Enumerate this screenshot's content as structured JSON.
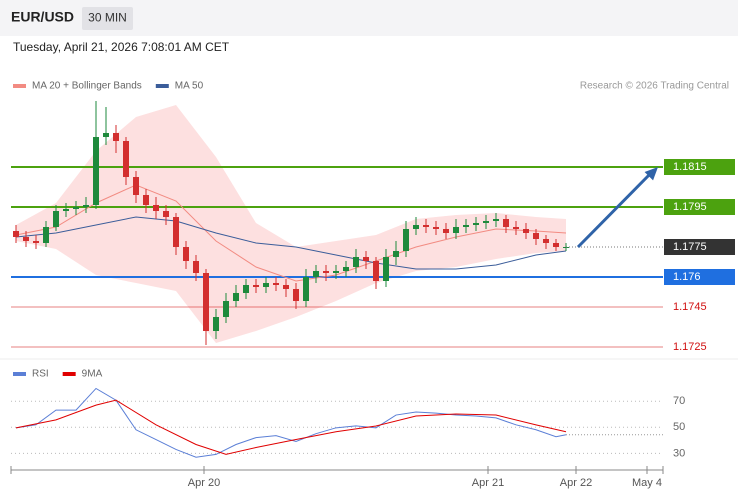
{
  "header": {
    "pair": "EUR/USD",
    "timeframe": "30 MIN",
    "timestamp": "Tuesday, April 21, 2026 7:08:01 AM CET",
    "credit": "Research © 2026 Trading Central"
  },
  "chart_data": [
    {
      "type": "candlestick",
      "xlim": [
        -0.5,
        64.7
      ],
      "ylim": [
        1.172,
        1.185
      ],
      "up_color": "#1e8a3c",
      "down_color": "#d32f2f",
      "candles": {
        "x": [
          0,
          1,
          2,
          3,
          4,
          5,
          6,
          7,
          8,
          9,
          10,
          11,
          12,
          13,
          14,
          15,
          16,
          17,
          18,
          19,
          20,
          21,
          22,
          23,
          24,
          25,
          26,
          27,
          28,
          29,
          30,
          31,
          32,
          33,
          34,
          35,
          36,
          37,
          38,
          39,
          40,
          41,
          42,
          43,
          44,
          45,
          46,
          47,
          48,
          49,
          50,
          51,
          52,
          53,
          54,
          55
        ],
        "open": [
          1.1783,
          1.178,
          1.1778,
          1.1777,
          1.1785,
          1.1793,
          1.1794,
          1.1795,
          1.1796,
          1.183,
          1.1832,
          1.1828,
          1.181,
          1.1801,
          1.1796,
          1.1793,
          1.179,
          1.1775,
          1.1768,
          1.1762,
          1.1733,
          1.174,
          1.1748,
          1.1752,
          1.1756,
          1.1755,
          1.1757,
          1.1756,
          1.1754,
          1.1748,
          1.176,
          1.1763,
          1.1762,
          1.1763,
          1.1765,
          1.177,
          1.1768,
          1.1758,
          1.177,
          1.1773,
          1.1784,
          1.1786,
          1.1785,
          1.1784,
          1.1782,
          1.1785,
          1.1786,
          1.1787,
          1.1788,
          1.1789,
          1.1785,
          1.1784,
          1.1782,
          1.1779,
          1.1777,
          1.1775
        ],
        "high": [
          1.1786,
          1.1783,
          1.1781,
          1.1788,
          1.1796,
          1.1797,
          1.1798,
          1.18,
          1.1848,
          1.1845,
          1.1836,
          1.183,
          1.1813,
          1.1804,
          1.18,
          1.1796,
          1.1792,
          1.1778,
          1.1771,
          1.1764,
          1.1744,
          1.1752,
          1.1756,
          1.1759,
          1.1759,
          1.176,
          1.176,
          1.1759,
          1.1757,
          1.1764,
          1.1766,
          1.1766,
          1.1766,
          1.1768,
          1.1774,
          1.1773,
          1.177,
          1.1774,
          1.1778,
          1.1788,
          1.179,
          1.1789,
          1.1788,
          1.1787,
          1.1789,
          1.1789,
          1.179,
          1.1791,
          1.1792,
          1.1791,
          1.1788,
          1.1787,
          1.1784,
          1.1781,
          1.1779,
          1.1777
        ],
        "low": [
          1.1777,
          1.1775,
          1.1774,
          1.1775,
          1.1783,
          1.179,
          1.1791,
          1.1792,
          1.1794,
          1.1826,
          1.1822,
          1.1806,
          1.1797,
          1.1792,
          1.1789,
          1.1786,
          1.1771,
          1.1764,
          1.1758,
          1.1726,
          1.1729,
          1.1737,
          1.1745,
          1.1749,
          1.1752,
          1.1752,
          1.1753,
          1.175,
          1.1744,
          1.1745,
          1.1757,
          1.1758,
          1.1759,
          1.176,
          1.1762,
          1.1764,
          1.1754,
          1.1755,
          1.1766,
          1.177,
          1.1781,
          1.1782,
          1.1781,
          1.1779,
          1.1779,
          1.1782,
          1.1783,
          1.1784,
          1.1785,
          1.1782,
          1.1781,
          1.1779,
          1.1776,
          1.1774,
          1.1773,
          1.1773
        ],
        "close": [
          1.178,
          1.1778,
          1.1777,
          1.1785,
          1.1793,
          1.1794,
          1.1795,
          1.1796,
          1.183,
          1.1832,
          1.1828,
          1.181,
          1.1801,
          1.1796,
          1.1793,
          1.179,
          1.1775,
          1.1768,
          1.1762,
          1.1733,
          1.174,
          1.1748,
          1.1752,
          1.1756,
          1.1755,
          1.1757,
          1.1756,
          1.1754,
          1.1748,
          1.176,
          1.1763,
          1.1762,
          1.1763,
          1.1765,
          1.177,
          1.1768,
          1.1758,
          1.177,
          1.1773,
          1.1784,
          1.1786,
          1.1785,
          1.1784,
          1.1782,
          1.1785,
          1.1786,
          1.1787,
          1.1788,
          1.1789,
          1.1785,
          1.1784,
          1.1782,
          1.1779,
          1.1777,
          1.1775,
          1.1775
        ]
      },
      "series": [
        {
          "name": "MA 20 + Bollinger Bands",
          "color": "#f28b82",
          "band_color": "#fde0e0",
          "x": [
            0,
            4,
            8,
            12,
            16,
            20,
            24,
            28,
            32,
            36,
            40,
            44,
            48,
            52,
            55
          ],
          "values": [
            1.1781,
            1.1785,
            1.1797,
            1.1806,
            1.1798,
            1.1778,
            1.1765,
            1.1758,
            1.1761,
            1.1768,
            1.1775,
            1.178,
            1.1784,
            1.1783,
            1.1782
          ],
          "upper": [
            1.1786,
            1.1797,
            1.1823,
            1.184,
            1.1846,
            1.182,
            1.1787,
            1.1775,
            1.1778,
            1.1781,
            1.1789,
            1.1791,
            1.1792,
            1.179,
            1.1789
          ],
          "lower": [
            1.1778,
            1.1774,
            1.1761,
            1.1757,
            1.1753,
            1.1727,
            1.1733,
            1.174,
            1.1748,
            1.1757,
            1.1763,
            1.1765,
            1.1769,
            1.1772,
            1.1773
          ]
        },
        {
          "name": "MA 50",
          "color": "#3b5d9a",
          "x": [
            0,
            4,
            8,
            12,
            16,
            20,
            24,
            28,
            32,
            36,
            40,
            44,
            48,
            52,
            55
          ],
          "values": [
            1.178,
            1.1782,
            1.1786,
            1.179,
            1.1788,
            1.1782,
            1.1777,
            1.1775,
            1.1771,
            1.1767,
            1.1764,
            1.1764,
            1.1766,
            1.1771,
            1.1773
          ]
        }
      ],
      "levels": [
        {
          "value": 1.1815,
          "color": "#4ca20f",
          "box": true
        },
        {
          "value": 1.1795,
          "color": "#4ca20f",
          "box": true
        },
        {
          "value": 1.176,
          "color": "#1f6fe0",
          "box": true
        },
        {
          "value": 1.1745,
          "color": "#d01010",
          "box": false
        },
        {
          "value": 1.1725,
          "color": "#d01010",
          "box": false
        }
      ],
      "last_price": 1.1775,
      "last_price_color": "#333333",
      "arrow": {
        "y": [
          1.1775,
          1.1815
        ],
        "color": "#2f63a8"
      }
    },
    {
      "type": "line",
      "xlim": [
        -0.5,
        64.7
      ],
      "ylim": [
        18,
        84
      ],
      "yticks": [
        30,
        50,
        70
      ],
      "grid": true,
      "xticks": [
        {
          "value": 18.8,
          "label": "Apr 20"
        },
        {
          "value": 47.2,
          "label": "Apr 21"
        },
        {
          "value": 56,
          "label": "Apr 22"
        },
        {
          "value": 63.1,
          "label": "May 4"
        }
      ],
      "series": [
        {
          "name": "RSI",
          "color": "#5b7fd6",
          "x": [
            0,
            2,
            4,
            6,
            8,
            10,
            12,
            14,
            16,
            18,
            20,
            22,
            24,
            26,
            28,
            30,
            32,
            34,
            36,
            38,
            40,
            42,
            44,
            46,
            48,
            50,
            52,
            54,
            55
          ],
          "values": [
            49.6,
            51.9,
            63.2,
            63.2,
            79.8,
            70.8,
            48.1,
            40.6,
            33,
            27,
            29.2,
            36.8,
            42.1,
            43.6,
            39.1,
            45.1,
            49.6,
            51.1,
            49.6,
            59.4,
            61.7,
            60.9,
            59.4,
            58.7,
            57.2,
            51.9,
            48.1,
            42.8,
            44.3
          ]
        },
        {
          "name": "9MA",
          "color": "#e00000",
          "x": [
            0,
            4,
            8,
            10,
            14,
            18,
            21,
            24,
            28,
            32,
            36,
            40,
            44,
            48,
            52,
            55
          ],
          "values": [
            49.6,
            55.7,
            67,
            70.8,
            51.9,
            36.8,
            29.2,
            34.5,
            40.6,
            46.6,
            51,
            58.7,
            60.2,
            59.4,
            51.9,
            46.6
          ]
        }
      ]
    }
  ]
}
